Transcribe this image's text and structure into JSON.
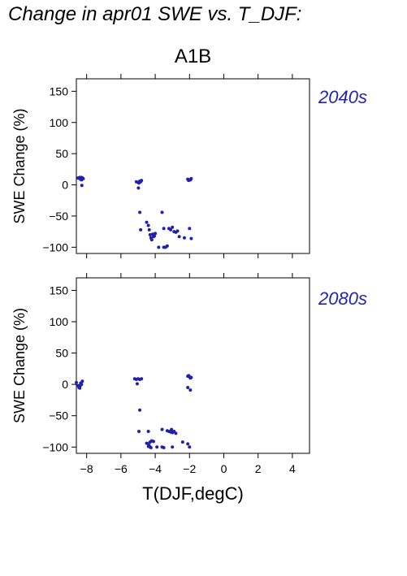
{
  "figure_title": "Change in apr01 SWE vs. T_DJF:",
  "scenario_label": "A1B",
  "colors": {
    "points": "#2020b0",
    "panel_label": "#2424a8",
    "axes": "#000000"
  },
  "chart_data": [
    {
      "type": "scatter",
      "panel_label": "2040s",
      "xlabel": "T(DJF,degC)",
      "ylabel": "SWE Change (%)",
      "xlim": [
        -8.6,
        5.0
      ],
      "ylim": [
        -110,
        170
      ],
      "xticks": [
        -8,
        -6,
        -4,
        -2,
        0,
        2,
        4
      ],
      "yticks": [
        -100,
        -50,
        0,
        50,
        100,
        150
      ],
      "show_x_tick_labels": false,
      "grid": false,
      "points": [
        [
          -8.5,
          11
        ],
        [
          -8.4,
          10
        ],
        [
          -8.3,
          12
        ],
        [
          -8.35,
          9
        ],
        [
          -8.25,
          11
        ],
        [
          -8.2,
          10
        ],
        [
          -8.3,
          8
        ],
        [
          -8.4,
          12
        ],
        [
          -8.28,
          -1
        ],
        [
          -5.1,
          5
        ],
        [
          -5.0,
          4
        ],
        [
          -4.9,
          6
        ],
        [
          -4.8,
          7
        ],
        [
          -4.95,
          3
        ],
        [
          -4.85,
          5
        ],
        [
          -4.98,
          -5
        ],
        [
          -2.1,
          9
        ],
        [
          -2.0,
          8
        ],
        [
          -1.9,
          10
        ],
        [
          -2.05,
          7
        ],
        [
          -1.95,
          8
        ],
        [
          -4.9,
          -44
        ],
        [
          -4.5,
          -60
        ],
        [
          -4.4,
          -65
        ],
        [
          -4.35,
          -72
        ],
        [
          -4.3,
          -80
        ],
        [
          -4.25,
          -85
        ],
        [
          -4.2,
          -88
        ],
        [
          -4.1,
          -83
        ],
        [
          -4.0,
          -78
        ],
        [
          -4.15,
          -79
        ],
        [
          -4.05,
          -82
        ],
        [
          -3.6,
          -44
        ],
        [
          -3.5,
          -70
        ],
        [
          -3.2,
          -70
        ],
        [
          -3.1,
          -72
        ],
        [
          -3.0,
          -68
        ],
        [
          -2.9,
          -75
        ],
        [
          -2.8,
          -76
        ],
        [
          -2.7,
          -74
        ],
        [
          -4.85,
          -72
        ],
        [
          -3.8,
          -100
        ],
        [
          -3.5,
          -100
        ],
        [
          -3.4,
          -100
        ],
        [
          -3.3,
          -98
        ],
        [
          -2.6,
          -83
        ],
        [
          -2.3,
          -85
        ],
        [
          -2.0,
          -70
        ],
        [
          -1.9,
          -86
        ]
      ]
    },
    {
      "type": "scatter",
      "panel_label": "2080s",
      "xlabel": "T(DJF,degC)",
      "ylabel": "SWE Change (%)",
      "xlim": [
        -8.6,
        5.0
      ],
      "ylim": [
        -110,
        170
      ],
      "xticks": [
        -8,
        -6,
        -4,
        -2,
        0,
        2,
        4
      ],
      "xticklabels": [
        "−8",
        "−6",
        "−4",
        "−2",
        "0",
        "2",
        "4"
      ],
      "yticks": [
        -100,
        -50,
        0,
        50,
        100,
        150
      ],
      "show_x_tick_labels": true,
      "grid": false,
      "points": [
        [
          -8.6,
          3
        ],
        [
          -8.5,
          -2
        ],
        [
          -8.45,
          -5
        ],
        [
          -8.4,
          -4
        ],
        [
          -8.35,
          -1
        ],
        [
          -8.3,
          0
        ],
        [
          -8.25,
          5
        ],
        [
          -8.4,
          -6
        ],
        [
          -8.35,
          2
        ],
        [
          -5.2,
          9
        ],
        [
          -5.1,
          8
        ],
        [
          -5.0,
          9
        ],
        [
          -4.9,
          8
        ],
        [
          -4.8,
          9
        ],
        [
          -5.05,
          1
        ],
        [
          -2.1,
          13
        ],
        [
          -2.0,
          12
        ],
        [
          -1.9,
          11
        ],
        [
          -2.05,
          14
        ],
        [
          -1.95,
          10
        ],
        [
          -2.1,
          -5
        ],
        [
          -1.95,
          -9
        ],
        [
          -4.9,
          -41
        ],
        [
          -4.95,
          -75
        ],
        [
          -4.4,
          -75
        ],
        [
          -4.5,
          -94
        ],
        [
          -4.4,
          -95
        ],
        [
          -4.3,
          -92
        ],
        [
          -4.2,
          -90
        ],
        [
          -4.1,
          -91
        ],
        [
          -4.35,
          -98
        ],
        [
          -4.3,
          -100
        ],
        [
          -4.25,
          -101
        ],
        [
          -4.4,
          -99
        ],
        [
          -3.9,
          -100
        ],
        [
          -3.6,
          -100
        ],
        [
          -3.5,
          -101
        ],
        [
          -3.6,
          -72
        ],
        [
          -3.3,
          -74
        ],
        [
          -3.2,
          -75
        ],
        [
          -3.1,
          -76
        ],
        [
          -3.0,
          -77
        ],
        [
          -2.9,
          -75
        ],
        [
          -2.8,
          -78
        ],
        [
          -3.05,
          -72
        ],
        [
          -3.0,
          -100
        ],
        [
          -2.4,
          -92
        ],
        [
          -2.1,
          -95
        ],
        [
          -2.0,
          -100
        ]
      ]
    }
  ]
}
